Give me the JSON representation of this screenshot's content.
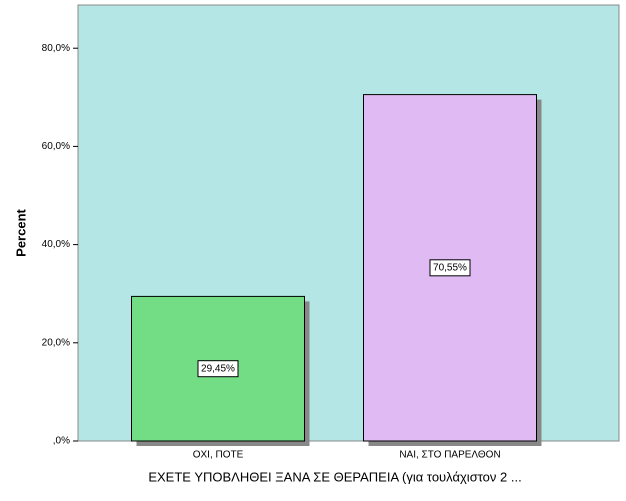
{
  "chart_data": {
    "type": "bar",
    "x_label": "ΕΧΕΤΕ ΥΠΟΒΛΗΘΕΙ ΞΑΝΑ ΣΕ ΘΕΡΑΠΕΙΑ (για τουλάχιστον 2 ...",
    "y_label": "Percent",
    "categories": [
      "ΟΧΙ, ΠΟΤΕ",
      "ΝΑΙ, ΣΤΟ ΠΑΡΕΛΘΟΝ"
    ],
    "values": [
      29.45,
      70.55
    ],
    "value_labels": [
      "29,45%",
      "70,55%"
    ],
    "colors": [
      "#72dd84",
      "#dfbaf3"
    ],
    "ylim": [
      0,
      88.8
    ],
    "yticks": [
      {
        "value": 0,
        "label": ",0%"
      },
      {
        "value": 20,
        "label": "20,0%"
      },
      {
        "value": 40,
        "label": "40,0%"
      },
      {
        "value": 60,
        "label": "60,0%"
      },
      {
        "value": 80,
        "label": "80,0%"
      }
    ],
    "grid": false
  }
}
